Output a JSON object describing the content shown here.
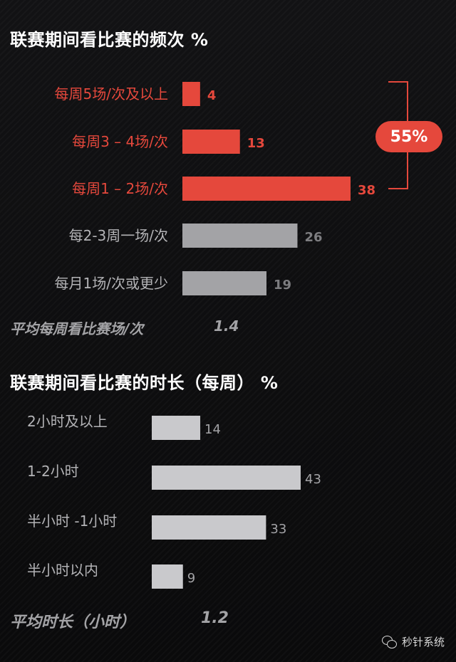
{
  "chart_data": [
    {
      "type": "bar",
      "orientation": "horizontal",
      "title": "联赛期间看比赛的频次 %",
      "categories": [
        "每周5场/次及以上",
        "每周3 – 4场/次",
        "每周1 – 2场/次",
        "每2-3周一场/次",
        "每月1场/次或更少"
      ],
      "values": [
        4,
        13,
        38,
        26,
        19
      ],
      "highlighted": [
        true,
        true,
        true,
        false,
        false
      ],
      "highlight_color": "#e5483c",
      "base_color": "#a3a3a6",
      "group_annotation": "55%",
      "average_label": "平均每周看比赛场/次",
      "average_value": "1.4"
    },
    {
      "type": "bar",
      "orientation": "horizontal",
      "title": "联赛期间看比赛的时长（每周） %",
      "categories": [
        "2小时及以上",
        "1-2小时",
        "半小时 -1小时",
        "半小时以内"
      ],
      "values": [
        14,
        43,
        33,
        9
      ],
      "bar_color": "#c9c9cc",
      "average_label": "平均时长（小时）",
      "average_value": "1.2"
    }
  ],
  "watermark": {
    "icon": "wechat-icon",
    "text": "秒针系统"
  }
}
